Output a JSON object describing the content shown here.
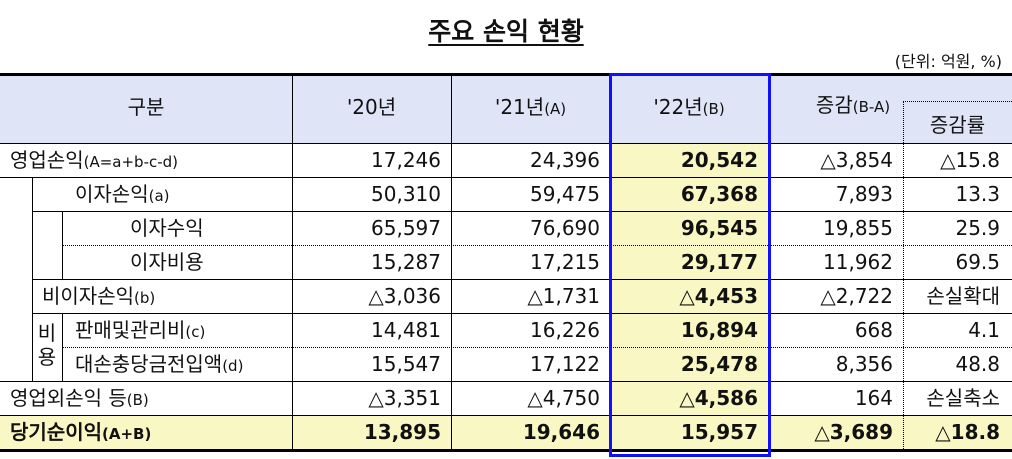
{
  "title": "주요 손익 현황",
  "unit": "(단위: 억원, %)",
  "headers": {
    "category": "구분",
    "y20": "'20년",
    "y21": "'21년",
    "y21_sfx": "(A)",
    "y22": "'22년",
    "y22_sfx": "(B)",
    "change": "증감",
    "change_sfx": "(B-A)",
    "rate": "증감률"
  },
  "group_label": "비용",
  "colors": {
    "header_bg": "#dfe4f7",
    "highlight_bg": "#f9f8c4",
    "highlight_border": "#1010ff"
  },
  "rows": [
    {
      "label": "영업손익",
      "sfx": "(A=a+b-c-d)",
      "y20": "17,246",
      "y21": "24,396",
      "y22": "20,542",
      "change": "△3,854",
      "rate": "△15.8"
    },
    {
      "label": "이자손익",
      "sfx": "(a)",
      "y20": "50,310",
      "y21": "59,475",
      "y22": "67,368",
      "change": "7,893",
      "rate": "13.3"
    },
    {
      "label": "이자수익",
      "sfx": "",
      "y20": "65,597",
      "y21": "76,690",
      "y22": "96,545",
      "change": "19,855",
      "rate": "25.9"
    },
    {
      "label": "이자비용",
      "sfx": "",
      "y20": "15,287",
      "y21": "17,215",
      "y22": "29,177",
      "change": "11,962",
      "rate": "69.5"
    },
    {
      "label": "비이자손익",
      "sfx": "(b)",
      "y20": "△3,036",
      "y21": "△1,731",
      "y22": "△4,453",
      "change": "△2,722",
      "rate": "손실확대"
    },
    {
      "label": "판매및관리비",
      "sfx": "(c)",
      "y20": "14,481",
      "y21": "16,226",
      "y22": "16,894",
      "change": "668",
      "rate": "4.1"
    },
    {
      "label": "대손충당금전입액",
      "sfx": "(d)",
      "y20": "15,547",
      "y21": "17,122",
      "y22": "25,478",
      "change": "8,356",
      "rate": "48.8"
    },
    {
      "label": "영업외손익 등",
      "sfx": "(B)",
      "y20": "△3,351",
      "y21": "△4,750",
      "y22": "△4,586",
      "change": "164",
      "rate": "손실축소"
    },
    {
      "label": "당기순이익",
      "sfx": "(A+B)",
      "y20": "13,895",
      "y21": "19,646",
      "y22": "15,957",
      "change": "△3,689",
      "rate": "△18.8"
    }
  ]
}
